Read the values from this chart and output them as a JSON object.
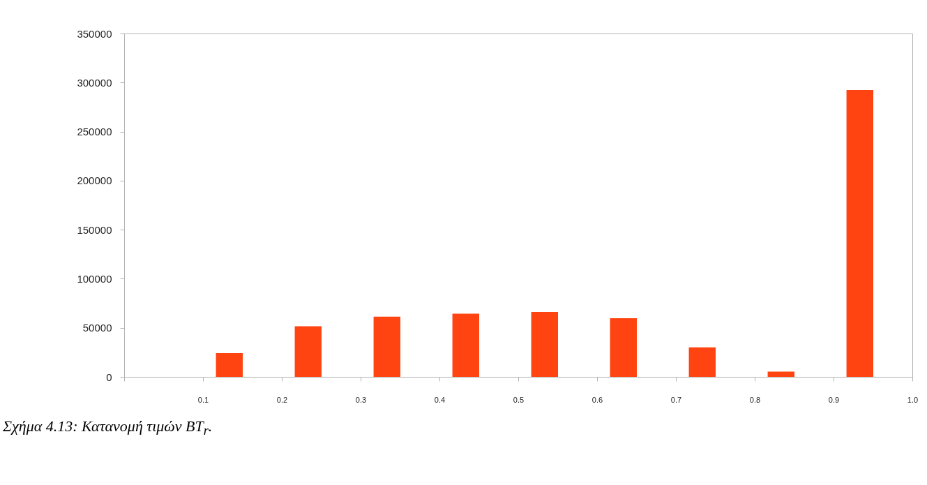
{
  "chart_data": {
    "type": "bar",
    "x": [
      0.133,
      0.233,
      0.333,
      0.433,
      0.533,
      0.633,
      0.733,
      0.833,
      0.933
    ],
    "values": [
      24500,
      51900,
      61800,
      64800,
      66500,
      60200,
      30400,
      5700,
      292800
    ],
    "color": "#ff4411",
    "xlim": [
      0,
      1.0
    ],
    "xticks": [
      {
        "value": 0,
        "label": null
      },
      0.1,
      0.2,
      0.3,
      0.4,
      0.5,
      0.6,
      0.7,
      0.8,
      0.9,
      {
        "value": 1.0,
        "label": "1.0"
      }
    ],
    "ylim": [
      0,
      350000
    ],
    "yticks": [
      0,
      50000,
      100000,
      150000,
      200000,
      250000,
      300000,
      350000
    ],
    "grid": false,
    "annotations": [
      "Σχήμα 4.13: Κατανομή τιμών BT$_{r}$."
    ]
  }
}
